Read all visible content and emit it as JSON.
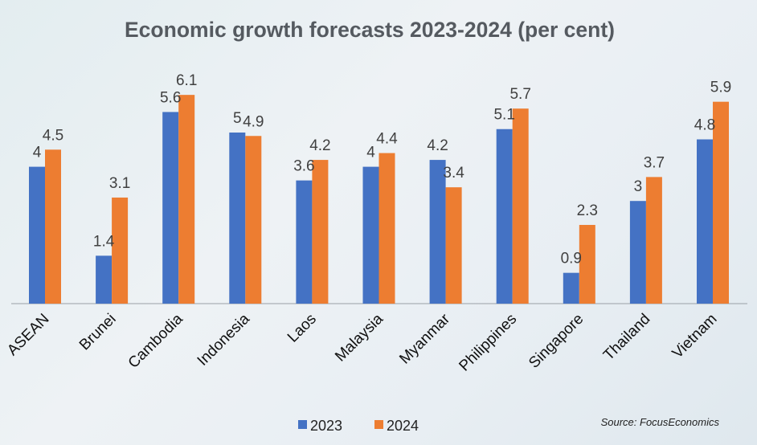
{
  "chart_data": {
    "type": "bar",
    "title": "Economic growth forecasts 2023-2024 (per cent)",
    "categories": [
      "ASEAN",
      "Brunei",
      "Cambodia",
      "Indonesia",
      "Laos",
      "Malaysia",
      "Myanmar",
      "Philippines",
      "Singapore",
      "Thailand",
      "Vietnam"
    ],
    "series": [
      {
        "name": "2023",
        "color": "#4472c4",
        "values": [
          4,
          1.4,
          5.6,
          5,
          3.6,
          4,
          4.2,
          5.1,
          0.9,
          3,
          4.8
        ]
      },
      {
        "name": "2024",
        "color": "#ed7d31",
        "values": [
          4.5,
          3.1,
          6.1,
          4.9,
          4.2,
          4.4,
          3.4,
          5.7,
          2.3,
          3.7,
          5.9
        ]
      }
    ],
    "ylim": [
      0,
      7
    ],
    "grid": false,
    "legend": "bottom",
    "source": "Source: FocusEconomics"
  }
}
